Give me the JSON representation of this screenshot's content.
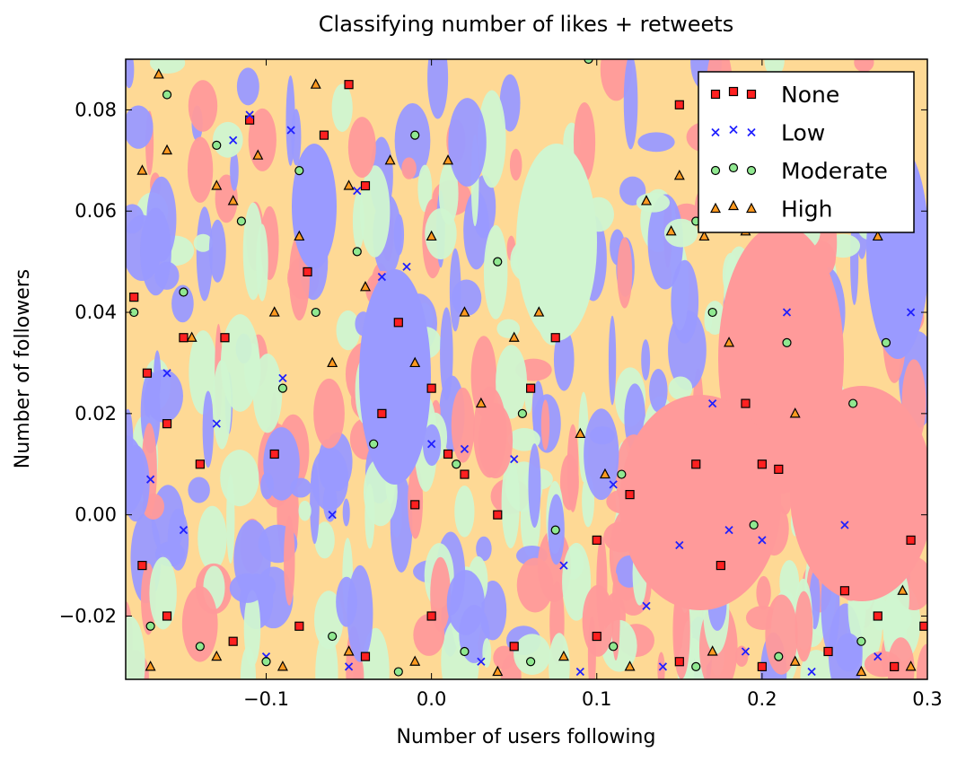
{
  "chart_data": {
    "type": "scatter",
    "title": "Classifying number of likes + retweets",
    "xlabel": "Number of users following",
    "ylabel": "Number of followers",
    "xlim": [
      -0.185,
      0.3
    ],
    "ylim": [
      -0.0325,
      0.09
    ],
    "x_ticks": [
      {
        "value": -0.1,
        "label": "−0.1"
      },
      {
        "value": 0.0,
        "label": "0.0"
      },
      {
        "value": 0.1,
        "label": "0.1"
      },
      {
        "value": 0.2,
        "label": "0.2"
      },
      {
        "value": 0.3,
        "label": "0.3"
      }
    ],
    "y_ticks": [
      {
        "value": -0.02,
        "label": "−0.02"
      },
      {
        "value": 0.0,
        "label": "0.00"
      },
      {
        "value": 0.02,
        "label": "0.02"
      },
      {
        "value": 0.04,
        "label": "0.04"
      },
      {
        "value": 0.06,
        "label": "0.06"
      },
      {
        "value": 0.08,
        "label": "0.08"
      }
    ],
    "grid": false,
    "legend": {
      "position": "top-right"
    },
    "background": "decision-region map coloured by predicted class",
    "series": [
      {
        "name": "None",
        "marker": "square",
        "color": "#ff2020",
        "region_color": "#ff9a9a",
        "points": [
          [
            -0.18,
            0.043
          ],
          [
            -0.172,
            0.028
          ],
          [
            -0.16,
            0.018
          ],
          [
            -0.15,
            0.035
          ],
          [
            -0.14,
            0.01
          ],
          [
            -0.125,
            0.035
          ],
          [
            -0.11,
            0.078
          ],
          [
            -0.095,
            0.012
          ],
          [
            -0.075,
            0.048
          ],
          [
            -0.065,
            0.075
          ],
          [
            -0.05,
            0.085
          ],
          [
            -0.04,
            0.065
          ],
          [
            -0.03,
            0.02
          ],
          [
            -0.02,
            0.038
          ],
          [
            -0.01,
            0.002
          ],
          [
            0.0,
            0.025
          ],
          [
            0.01,
            0.012
          ],
          [
            0.02,
            0.008
          ],
          [
            0.04,
            0.0
          ],
          [
            0.06,
            0.025
          ],
          [
            0.075,
            0.035
          ],
          [
            0.1,
            -0.005
          ],
          [
            0.12,
            0.004
          ],
          [
            0.15,
            0.081
          ],
          [
            0.16,
            0.01
          ],
          [
            0.175,
            -0.01
          ],
          [
            0.19,
            0.022
          ],
          [
            0.2,
            0.01
          ],
          [
            0.21,
            0.009
          ],
          [
            0.25,
            -0.015
          ],
          [
            0.27,
            -0.02
          ],
          [
            0.29,
            -0.005
          ],
          [
            -0.175,
            -0.01
          ],
          [
            -0.16,
            -0.02
          ],
          [
            -0.12,
            -0.025
          ],
          [
            -0.08,
            -0.022
          ],
          [
            -0.04,
            -0.028
          ],
          [
            0.0,
            -0.02
          ],
          [
            0.05,
            -0.026
          ],
          [
            0.1,
            -0.024
          ],
          [
            0.15,
            -0.029
          ],
          [
            0.2,
            -0.03
          ],
          [
            0.24,
            -0.027
          ],
          [
            0.28,
            -0.03
          ],
          [
            0.298,
            -0.022
          ]
        ]
      },
      {
        "name": "Low",
        "marker": "x",
        "color": "#2020ff",
        "region_color": "#9a9aff",
        "points": [
          [
            -0.17,
            0.007
          ],
          [
            -0.16,
            0.028
          ],
          [
            -0.15,
            -0.003
          ],
          [
            -0.13,
            0.018
          ],
          [
            -0.12,
            0.074
          ],
          [
            -0.11,
            0.079
          ],
          [
            -0.09,
            0.027
          ],
          [
            -0.085,
            0.076
          ],
          [
            -0.06,
            0.0
          ],
          [
            -0.045,
            0.064
          ],
          [
            -0.03,
            0.047
          ],
          [
            -0.015,
            0.049
          ],
          [
            0.0,
            0.014
          ],
          [
            0.02,
            0.013
          ],
          [
            0.05,
            0.011
          ],
          [
            0.08,
            -0.01
          ],
          [
            0.11,
            0.006
          ],
          [
            0.13,
            -0.018
          ],
          [
            0.15,
            -0.006
          ],
          [
            0.17,
            0.022
          ],
          [
            0.18,
            -0.003
          ],
          [
            0.2,
            -0.005
          ],
          [
            0.215,
            0.04
          ],
          [
            0.25,
            -0.002
          ],
          [
            0.29,
            0.04
          ],
          [
            -0.1,
            -0.028
          ],
          [
            -0.05,
            -0.03
          ],
          [
            0.03,
            -0.029
          ],
          [
            0.09,
            -0.031
          ],
          [
            0.14,
            -0.03
          ],
          [
            0.19,
            -0.027
          ],
          [
            0.23,
            -0.031
          ],
          [
            0.27,
            -0.028
          ]
        ]
      },
      {
        "name": "Moderate",
        "marker": "circle",
        "color": "#90e890",
        "region_color": "#d0f5d0",
        "points": [
          [
            -0.18,
            0.04
          ],
          [
            -0.16,
            0.083
          ],
          [
            -0.15,
            0.044
          ],
          [
            -0.13,
            0.073
          ],
          [
            -0.115,
            0.058
          ],
          [
            -0.09,
            0.025
          ],
          [
            -0.08,
            0.068
          ],
          [
            -0.07,
            0.04
          ],
          [
            -0.045,
            0.052
          ],
          [
            -0.035,
            0.014
          ],
          [
            -0.01,
            0.075
          ],
          [
            0.015,
            0.01
          ],
          [
            0.04,
            0.05
          ],
          [
            0.055,
            0.02
          ],
          [
            0.075,
            -0.003
          ],
          [
            0.095,
            0.09
          ],
          [
            0.115,
            0.008
          ],
          [
            0.16,
            0.058
          ],
          [
            0.17,
            0.04
          ],
          [
            0.195,
            -0.002
          ],
          [
            0.215,
            0.034
          ],
          [
            0.255,
            0.022
          ],
          [
            0.275,
            0.034
          ],
          [
            -0.17,
            -0.022
          ],
          [
            -0.14,
            -0.026
          ],
          [
            -0.1,
            -0.029
          ],
          [
            -0.06,
            -0.024
          ],
          [
            -0.02,
            -0.031
          ],
          [
            0.02,
            -0.027
          ],
          [
            0.06,
            -0.029
          ],
          [
            0.11,
            -0.026
          ],
          [
            0.16,
            -0.03
          ],
          [
            0.21,
            -0.028
          ],
          [
            0.26,
            -0.025
          ]
        ]
      },
      {
        "name": "High",
        "marker": "triangle",
        "color": "#ff9a20",
        "region_color": "#fed995",
        "points": [
          [
            -0.175,
            0.068
          ],
          [
            -0.165,
            0.087
          ],
          [
            -0.16,
            0.072
          ],
          [
            -0.145,
            0.035
          ],
          [
            -0.13,
            0.065
          ],
          [
            -0.12,
            0.062
          ],
          [
            -0.105,
            0.071
          ],
          [
            -0.095,
            0.04
          ],
          [
            -0.08,
            0.055
          ],
          [
            -0.07,
            0.085
          ],
          [
            -0.06,
            0.03
          ],
          [
            -0.05,
            0.065
          ],
          [
            -0.04,
            0.045
          ],
          [
            -0.025,
            0.07
          ],
          [
            -0.01,
            0.03
          ],
          [
            0.0,
            0.055
          ],
          [
            0.01,
            0.07
          ],
          [
            0.02,
            0.04
          ],
          [
            0.03,
            0.022
          ],
          [
            0.05,
            0.035
          ],
          [
            0.065,
            0.04
          ],
          [
            0.09,
            0.016
          ],
          [
            0.105,
            0.008
          ],
          [
            0.13,
            0.062
          ],
          [
            0.145,
            0.056
          ],
          [
            0.15,
            0.067
          ],
          [
            0.165,
            0.055
          ],
          [
            0.18,
            0.034
          ],
          [
            0.19,
            0.056
          ],
          [
            0.22,
            0.02
          ],
          [
            0.27,
            0.055
          ],
          [
            0.285,
            -0.015
          ],
          [
            -0.17,
            -0.03
          ],
          [
            -0.13,
            -0.028
          ],
          [
            -0.09,
            -0.03
          ],
          [
            -0.05,
            -0.027
          ],
          [
            -0.01,
            -0.029
          ],
          [
            0.04,
            -0.031
          ],
          [
            0.08,
            -0.028
          ],
          [
            0.12,
            -0.03
          ],
          [
            0.17,
            -0.027
          ],
          [
            0.22,
            -0.029
          ],
          [
            0.26,
            -0.031
          ],
          [
            0.29,
            -0.03
          ]
        ]
      }
    ],
    "legend_entries": [
      "None",
      "Low",
      "Moderate",
      "High"
    ]
  }
}
